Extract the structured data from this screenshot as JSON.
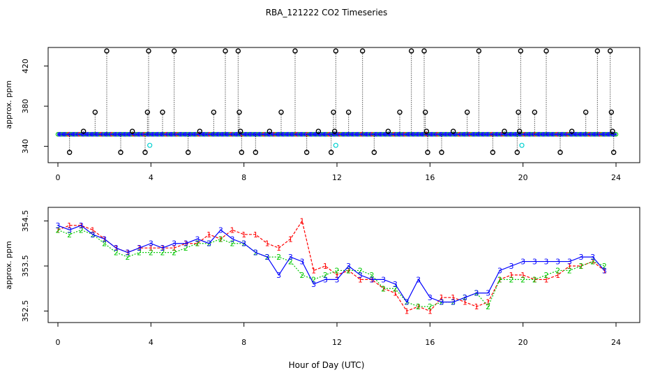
{
  "title": "RBA_121222  CO2 Timeseries",
  "xlabel": "Hour of Day (UTC)",
  "chart_data": [
    {
      "type": "scatter",
      "ylabel": "approx. ppm",
      "xlim": [
        0,
        24
      ],
      "ylim": [
        330,
        435
      ],
      "x_ticks": [
        "0",
        "4",
        "8",
        "12",
        "16",
        "20",
        "24"
      ],
      "y_ticks": [
        "340",
        "380",
        "420"
      ],
      "baseline": 352,
      "colors": {
        "1": "#ff0000",
        "2": "#00c800",
        "3": "#0000ff",
        "outlier": "#000000",
        "cyan": "#00d0d0"
      },
      "outliers": [
        {
          "x": 0.5,
          "y": 334
        },
        {
          "x": 1.1,
          "y": 355
        },
        {
          "x": 1.6,
          "y": 374
        },
        {
          "x": 2.1,
          "y": 435
        },
        {
          "x": 2.7,
          "y": 334
        },
        {
          "x": 3.2,
          "y": 355
        },
        {
          "x": 3.75,
          "y": 334
        },
        {
          "x": 3.85,
          "y": 374
        },
        {
          "x": 3.9,
          "y": 435
        },
        {
          "x": 4.5,
          "y": 374
        },
        {
          "x": 5.0,
          "y": 435
        },
        {
          "x": 5.6,
          "y": 334
        },
        {
          "x": 6.1,
          "y": 355
        },
        {
          "x": 6.7,
          "y": 374
        },
        {
          "x": 7.2,
          "y": 435
        },
        {
          "x": 7.75,
          "y": 435
        },
        {
          "x": 7.8,
          "y": 374
        },
        {
          "x": 7.85,
          "y": 355
        },
        {
          "x": 7.9,
          "y": 334
        },
        {
          "x": 8.5,
          "y": 334
        },
        {
          "x": 9.1,
          "y": 355
        },
        {
          "x": 9.6,
          "y": 374
        },
        {
          "x": 10.2,
          "y": 435
        },
        {
          "x": 10.7,
          "y": 334
        },
        {
          "x": 11.2,
          "y": 355
        },
        {
          "x": 11.75,
          "y": 334
        },
        {
          "x": 11.85,
          "y": 374
        },
        {
          "x": 11.9,
          "y": 355
        },
        {
          "x": 11.95,
          "y": 435
        },
        {
          "x": 12.5,
          "y": 374
        },
        {
          "x": 13.1,
          "y": 435
        },
        {
          "x": 13.6,
          "y": 334
        },
        {
          "x": 14.2,
          "y": 355
        },
        {
          "x": 14.7,
          "y": 374
        },
        {
          "x": 15.2,
          "y": 435
        },
        {
          "x": 15.75,
          "y": 435
        },
        {
          "x": 15.8,
          "y": 374
        },
        {
          "x": 15.85,
          "y": 355
        },
        {
          "x": 15.9,
          "y": 334
        },
        {
          "x": 16.5,
          "y": 334
        },
        {
          "x": 17.0,
          "y": 355
        },
        {
          "x": 17.6,
          "y": 374
        },
        {
          "x": 18.1,
          "y": 435
        },
        {
          "x": 18.7,
          "y": 334
        },
        {
          "x": 19.2,
          "y": 355
        },
        {
          "x": 19.75,
          "y": 334
        },
        {
          "x": 19.8,
          "y": 374
        },
        {
          "x": 19.85,
          "y": 355
        },
        {
          "x": 19.9,
          "y": 435
        },
        {
          "x": 20.5,
          "y": 374
        },
        {
          "x": 21.0,
          "y": 435
        },
        {
          "x": 21.6,
          "y": 334
        },
        {
          "x": 22.1,
          "y": 355
        },
        {
          "x": 22.7,
          "y": 374
        },
        {
          "x": 23.2,
          "y": 435
        },
        {
          "x": 23.75,
          "y": 435
        },
        {
          "x": 23.8,
          "y": 374
        },
        {
          "x": 23.85,
          "y": 355
        },
        {
          "x": 23.9,
          "y": 334
        }
      ],
      "cyan_points": [
        {
          "x": 3.95,
          "y": 341
        },
        {
          "x": 11.95,
          "y": 341
        },
        {
          "x": 19.95,
          "y": 341
        }
      ]
    },
    {
      "type": "line",
      "ylabel": "approx. ppm",
      "xlim": [
        0,
        24
      ],
      "ylim": [
        352.4,
        354.6
      ],
      "x_ticks": [
        "0",
        "4",
        "8",
        "12",
        "16",
        "20",
        "24"
      ],
      "y_ticks": [
        "352.5",
        "353.5",
        "354.5"
      ],
      "x": [
        0,
        0.5,
        1,
        1.5,
        2,
        2.5,
        3,
        3.5,
        4,
        4.5,
        5,
        5.5,
        6,
        6.5,
        7,
        7.5,
        8,
        8.5,
        9,
        9.5,
        10,
        10.5,
        11,
        11.5,
        12,
        12.5,
        13,
        13.5,
        14,
        14.5,
        15,
        15.5,
        16,
        16.5,
        17,
        17.5,
        18,
        18.5,
        19,
        19.5,
        20,
        20.5,
        21,
        21.5,
        22,
        22.5,
        23,
        23.5
      ],
      "series": [
        {
          "name": "1",
          "color": "#ff0000",
          "values": [
            354.3,
            354.4,
            354.4,
            354.3,
            354.1,
            353.9,
            353.8,
            353.9,
            353.9,
            353.9,
            353.9,
            354.0,
            354.0,
            354.2,
            354.1,
            354.3,
            354.2,
            354.2,
            354.0,
            353.9,
            354.1,
            354.5,
            353.4,
            353.5,
            353.3,
            353.4,
            353.2,
            353.2,
            353.0,
            352.9,
            352.5,
            352.6,
            352.5,
            352.8,
            352.8,
            352.7,
            352.6,
            352.7,
            353.2,
            353.3,
            353.3,
            353.2,
            353.2,
            353.3,
            353.5,
            353.5,
            353.6,
            353.4
          ]
        },
        {
          "name": "2",
          "color": "#00c800",
          "values": [
            354.3,
            354.2,
            354.3,
            354.2,
            354.0,
            353.8,
            353.7,
            353.8,
            353.8,
            353.8,
            353.8,
            353.9,
            354.0,
            354.0,
            354.1,
            354.0,
            354.0,
            353.8,
            353.7,
            353.7,
            353.6,
            353.3,
            353.2,
            353.3,
            353.4,
            353.4,
            353.4,
            353.3,
            353.0,
            353.0,
            352.7,
            352.6,
            352.6,
            352.7,
            352.7,
            352.8,
            352.9,
            352.6,
            353.2,
            353.2,
            353.2,
            353.2,
            353.3,
            353.4,
            353.4,
            353.5,
            353.6,
            353.5
          ]
        },
        {
          "name": "3",
          "color": "#0000ff",
          "values": [
            354.4,
            354.3,
            354.4,
            354.2,
            354.1,
            353.9,
            353.8,
            353.9,
            354.0,
            353.9,
            354.0,
            354.0,
            354.1,
            354.0,
            354.3,
            354.1,
            354.0,
            353.8,
            353.7,
            353.3,
            353.7,
            353.6,
            353.1,
            353.2,
            353.2,
            353.5,
            353.3,
            353.2,
            353.2,
            353.1,
            352.7,
            353.2,
            352.8,
            352.7,
            352.7,
            352.8,
            352.9,
            352.9,
            353.4,
            353.5,
            353.6,
            353.6,
            353.6,
            353.6,
            353.6,
            353.7,
            353.7,
            353.4
          ]
        }
      ]
    }
  ]
}
